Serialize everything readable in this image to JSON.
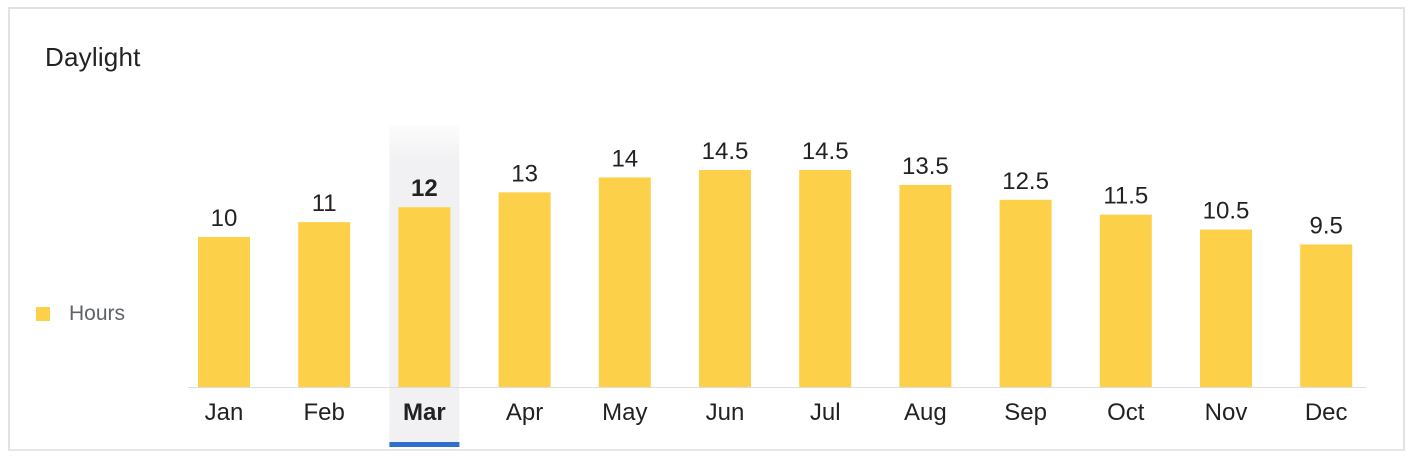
{
  "title": "Daylight",
  "legend": {
    "label": "Hours",
    "color": "#fdd04a"
  },
  "selected_category": "Mar",
  "colors": {
    "bar": "#fdd04a",
    "selection_band": "#f1f1f3",
    "selection_underline": "#2f6ecb",
    "axis": "#dddddd"
  },
  "chart_data": {
    "type": "bar",
    "title": "Daylight",
    "categories": [
      "Jan",
      "Feb",
      "Mar",
      "Apr",
      "May",
      "Jun",
      "Jul",
      "Aug",
      "Sep",
      "Oct",
      "Nov",
      "Dec"
    ],
    "series": [
      {
        "name": "Hours",
        "values": [
          10,
          11,
          12,
          13,
          14,
          14.5,
          14.5,
          13.5,
          12.5,
          11.5,
          10.5,
          9.5
        ]
      }
    ],
    "data_labels": [
      "10",
      "11",
      "12",
      "13",
      "14",
      "14.5",
      "14.5",
      "13.5",
      "12.5",
      "11.5",
      "10.5",
      "9.5"
    ],
    "xlabel": "",
    "ylabel": "",
    "grid": false,
    "legend_position": "left"
  }
}
